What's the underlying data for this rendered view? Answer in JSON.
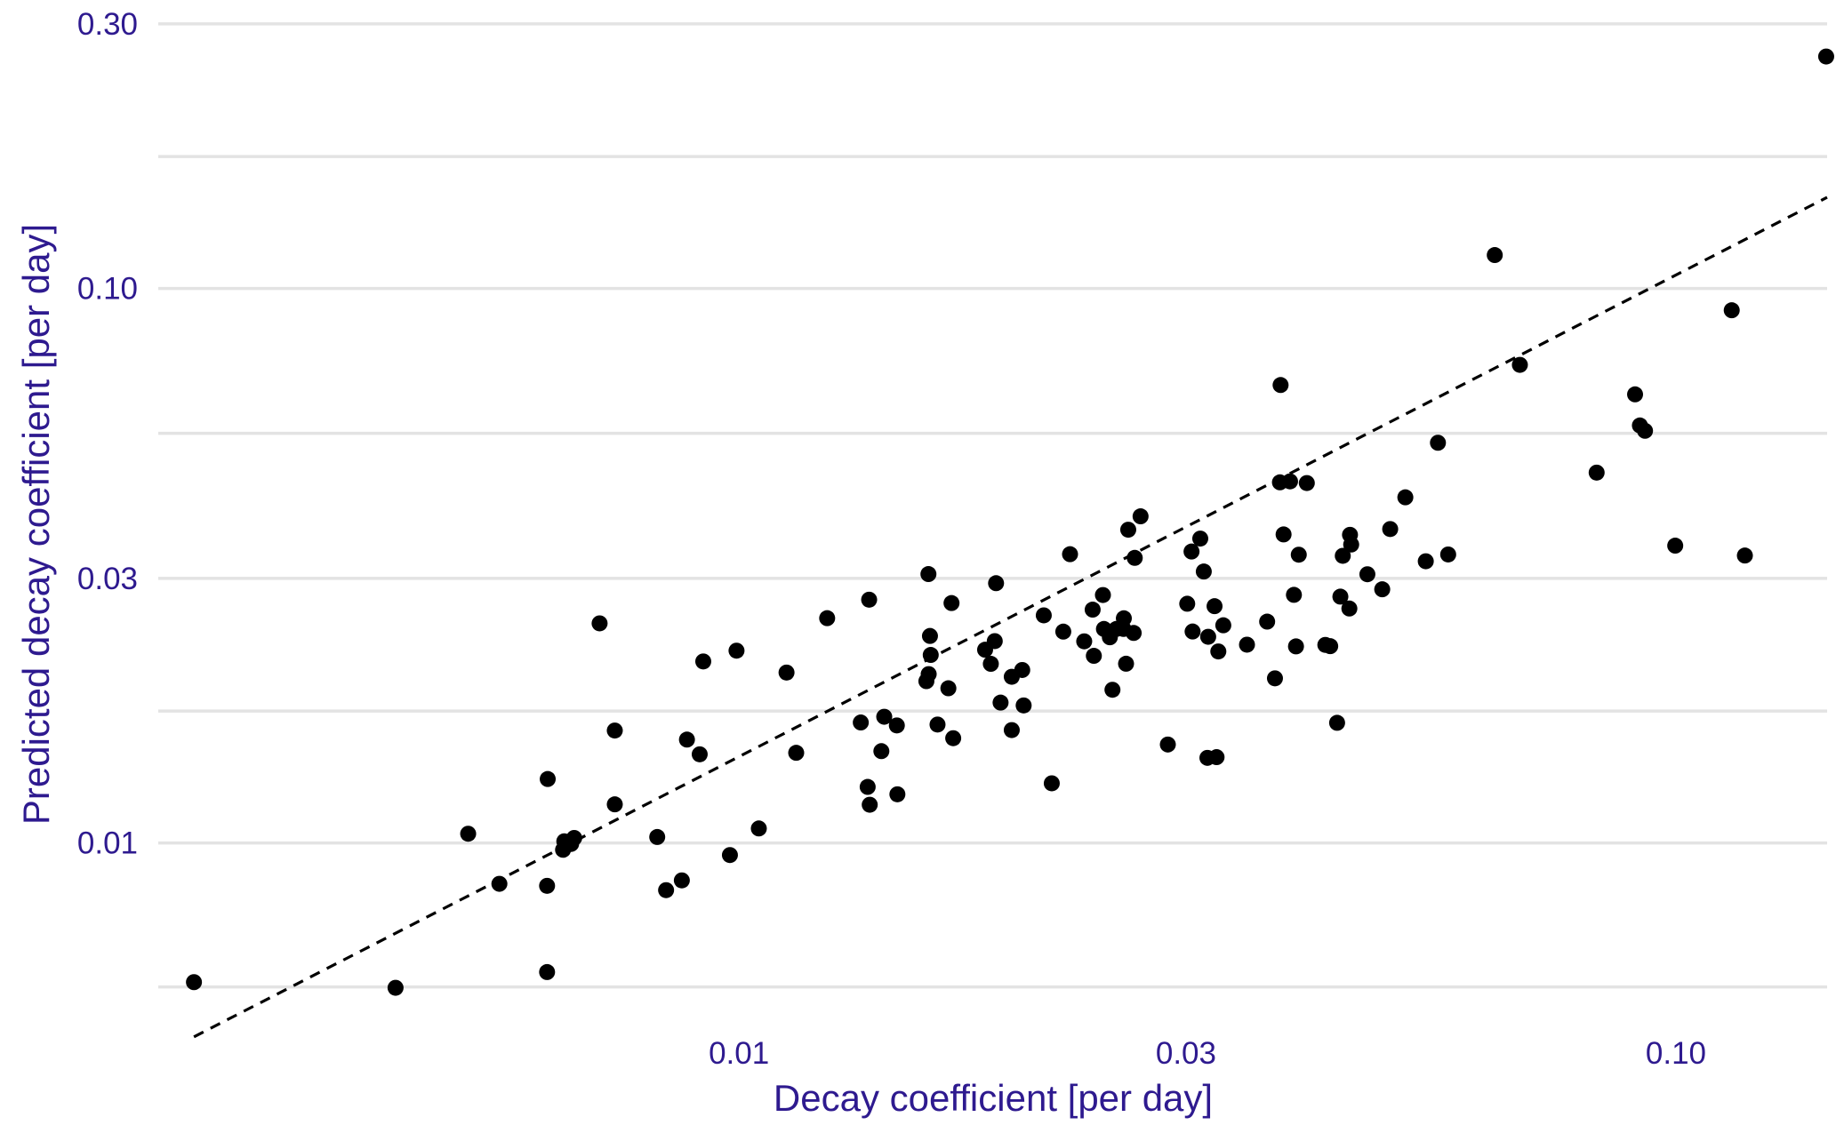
{
  "chart_data": {
    "type": "scatter",
    "title": "",
    "xlabel": "Decay coefficient [per day]",
    "ylabel": "Predicted decay coefficient [per day]",
    "x_scale": "log",
    "y_scale": "log",
    "xlim": [
      0.0024,
      0.145
    ],
    "ylim": [
      0.0045,
      0.31
    ],
    "x_ticks": [
      0.01,
      0.03,
      0.1
    ],
    "x_tick_labels": [
      "0.01",
      "0.03",
      "0.10"
    ],
    "y_ticks": [
      0.01,
      0.03,
      0.1,
      0.3
    ],
    "y_tick_labels": [
      "0.01",
      "0.03",
      "0.10",
      "0.30"
    ],
    "y_minor_gridlines": [
      0.0055,
      0.0173,
      0.0548,
      0.173
    ],
    "grid": true,
    "reference_line": {
      "style": "dashed",
      "x": [
        0.00262,
        0.145
      ],
      "y": [
        0.00447,
        0.146
      ]
    },
    "colors": {
      "points": "#000000",
      "axis_text": "#2e1a8f",
      "grid": "#e3e3e3"
    },
    "points": [
      [
        0.00262,
        0.00561
      ],
      [
        0.0043,
        0.00548
      ],
      [
        0.00514,
        0.01039
      ],
      [
        0.00555,
        0.00844
      ],
      [
        0.00624,
        0.00837
      ],
      [
        0.00624,
        0.00585
      ],
      [
        0.00625,
        0.01304
      ],
      [
        0.00651,
        0.01007
      ],
      [
        0.00649,
        0.00972
      ],
      [
        0.00662,
        0.00996
      ],
      [
        0.00667,
        0.01021
      ],
      [
        0.0071,
        0.02489
      ],
      [
        0.00737,
        0.01174
      ],
      [
        0.00737,
        0.01595
      ],
      [
        0.00818,
        0.01025
      ],
      [
        0.00836,
        0.00822
      ],
      [
        0.00869,
        0.00856
      ],
      [
        0.0088,
        0.01536
      ],
      [
        0.00908,
        0.01445
      ],
      [
        0.00916,
        0.02125
      ],
      [
        0.00978,
        0.00951
      ],
      [
        0.00994,
        0.02222
      ],
      [
        0.0105,
        0.01062
      ],
      [
        0.01124,
        0.02029
      ],
      [
        0.01151,
        0.01454
      ],
      [
        0.01242,
        0.02543
      ],
      [
        0.01349,
        0.01649
      ],
      [
        0.01372,
        0.01262
      ],
      [
        0.01379,
        0.01172
      ],
      [
        0.01377,
        0.02746
      ],
      [
        0.01419,
        0.01464
      ],
      [
        0.01429,
        0.01689
      ],
      [
        0.01474,
        0.01629
      ],
      [
        0.01476,
        0.01224
      ],
      [
        0.01585,
        0.01958
      ],
      [
        0.01594,
        0.02016
      ],
      [
        0.01599,
        0.02362
      ],
      [
        0.01602,
        0.02183
      ],
      [
        0.01593,
        0.03054
      ],
      [
        0.01629,
        0.01635
      ],
      [
        0.01673,
        0.01901
      ],
      [
        0.01686,
        0.02708
      ],
      [
        0.01693,
        0.01545
      ],
      [
        0.01831,
        0.02231
      ],
      [
        0.01857,
        0.02104
      ],
      [
        0.01875,
        0.02312
      ],
      [
        0.01881,
        0.02941
      ],
      [
        0.01902,
        0.01791
      ],
      [
        0.01955,
        0.01994
      ],
      [
        0.01955,
        0.01598
      ],
      [
        0.02006,
        0.02051
      ],
      [
        0.02013,
        0.0177
      ],
      [
        0.02115,
        0.02573
      ],
      [
        0.02157,
        0.01281
      ],
      [
        0.02219,
        0.02405
      ],
      [
        0.02256,
        0.03317
      ],
      [
        0.02336,
        0.0231
      ],
      [
        0.02385,
        0.02635
      ],
      [
        0.02392,
        0.02175
      ],
      [
        0.02446,
        0.028
      ],
      [
        0.02452,
        0.02432
      ],
      [
        0.02488,
        0.02349
      ],
      [
        0.02504,
        0.01889
      ],
      [
        0.02528,
        0.02432
      ],
      [
        0.02589,
        0.02105
      ],
      [
        0.02573,
        0.02432
      ],
      [
        0.02575,
        0.02542
      ],
      [
        0.02603,
        0.03672
      ],
      [
        0.02645,
        0.03267
      ],
      [
        0.02638,
        0.02392
      ],
      [
        0.02683,
        0.03882
      ],
      [
        0.02869,
        0.01505
      ],
      [
        0.03009,
        0.027
      ],
      [
        0.03041,
        0.03354
      ],
      [
        0.03049,
        0.02406
      ],
      [
        0.03107,
        0.03539
      ],
      [
        0.03134,
        0.03087
      ],
      [
        0.03162,
        0.01424
      ],
      [
        0.03168,
        0.02354
      ],
      [
        0.03218,
        0.02673
      ],
      [
        0.03248,
        0.02215
      ],
      [
        0.03234,
        0.01428
      ],
      [
        0.03288,
        0.02469
      ],
      [
        0.03485,
        0.02278
      ],
      [
        0.03662,
        0.02507
      ],
      [
        0.03733,
        0.01981
      ],
      [
        0.03779,
        0.04471
      ],
      [
        0.03785,
        0.06696
      ],
      [
        0.03813,
        0.03601
      ],
      [
        0.03874,
        0.04488
      ],
      [
        0.03911,
        0.02802
      ],
      [
        0.03931,
        0.02262
      ],
      [
        0.03958,
        0.0331
      ],
      [
        0.04037,
        0.04457
      ],
      [
        0.04225,
        0.02276
      ],
      [
        0.04276,
        0.02264
      ],
      [
        0.04349,
        0.01647
      ],
      [
        0.04384,
        0.02781
      ],
      [
        0.0441,
        0.03295
      ],
      [
        0.04482,
        0.02647
      ],
      [
        0.04489,
        0.03595
      ],
      [
        0.04502,
        0.03453
      ],
      [
        0.04685,
        0.03052
      ],
      [
        0.04859,
        0.02867
      ],
      [
        0.04955,
        0.03682
      ],
      [
        0.05143,
        0.04201
      ],
      [
        0.05408,
        0.03221
      ],
      [
        0.05572,
        0.05269
      ],
      [
        0.05714,
        0.03313
      ],
      [
        0.06407,
        0.11487
      ],
      [
        0.06815,
        0.07281
      ],
      [
        0.0823,
        0.04655
      ],
      [
        0.09045,
        0.06442
      ],
      [
        0.09153,
        0.05662
      ],
      [
        0.09269,
        0.05537
      ],
      [
        0.09983,
        0.03437
      ],
      [
        0.1147,
        0.09134
      ],
      [
        0.11847,
        0.03299
      ],
      [
        0.14467,
        0.26198
      ]
    ]
  }
}
